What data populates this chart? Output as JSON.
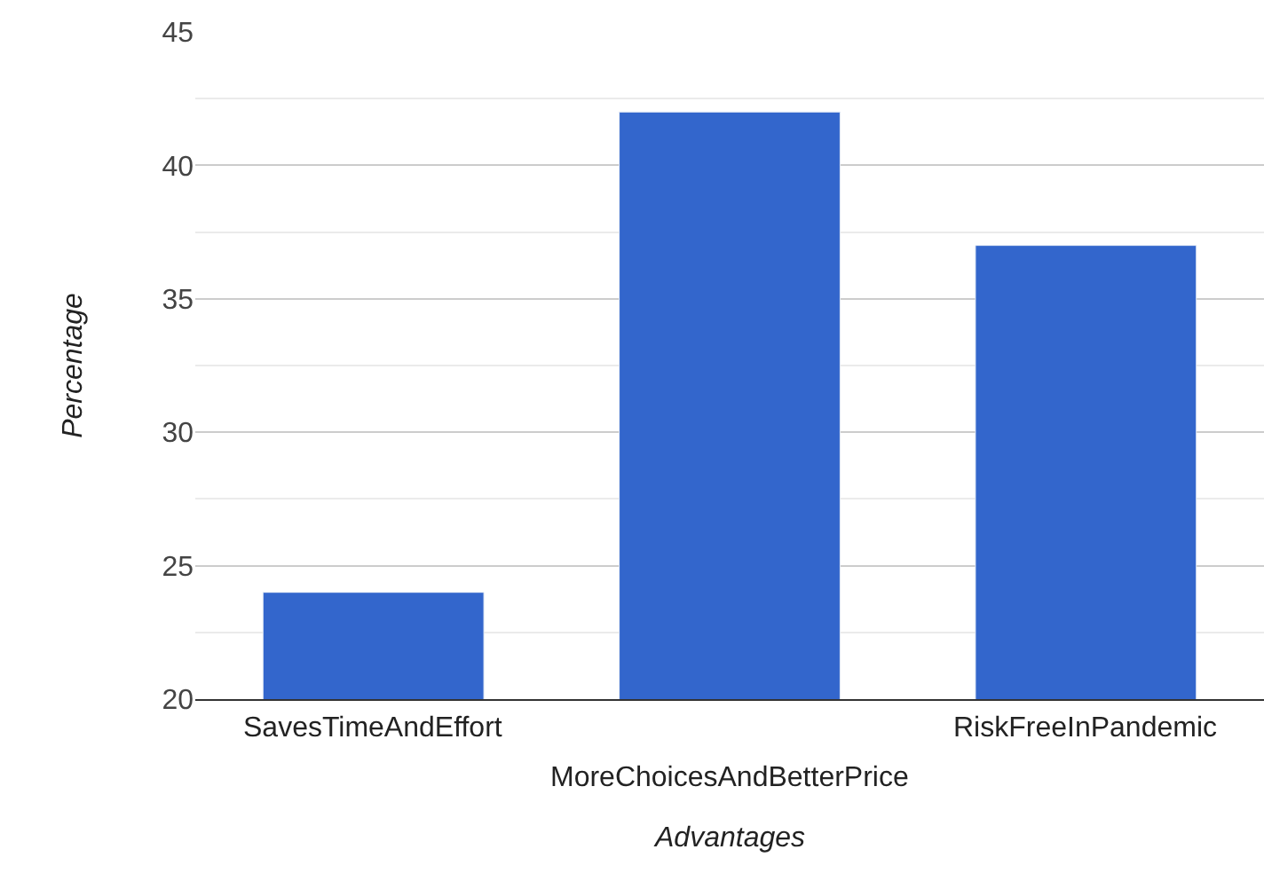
{
  "chart_data": {
    "type": "bar",
    "xlabel": "Advantages",
    "ylabel": "Percentage",
    "categories": [
      "SavesTimeAndEffort",
      "MoreChoicesAndBetterPrice",
      "RiskFreeInPandemic"
    ],
    "values": [
      24,
      42,
      37
    ],
    "color": "#3366cc",
    "ylim": [
      20,
      45
    ],
    "yticks": [
      20,
      25,
      30,
      35,
      40,
      45
    ],
    "grid": "y",
    "legend": false
  }
}
